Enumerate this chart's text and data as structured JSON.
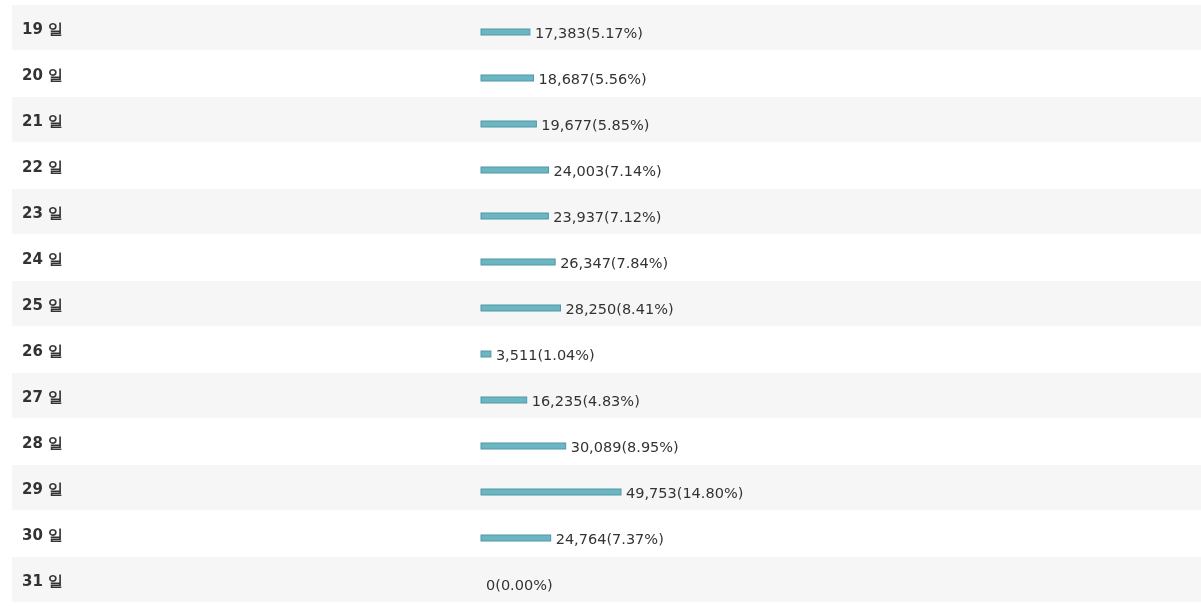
{
  "chart_data": {
    "type": "bar",
    "orientation": "horizontal",
    "color": "#6cb5c2",
    "categories": [
      "19 일",
      "20 일",
      "21 일",
      "22 일",
      "23 일",
      "24 일",
      "25 일",
      "26 일",
      "27 일",
      "28 일",
      "29 일",
      "30 일",
      "31 일"
    ],
    "values": [
      17383,
      18687,
      19677,
      24003,
      23937,
      26347,
      28250,
      3511,
      16235,
      30089,
      49753,
      24764,
      0
    ],
    "value_labels": [
      "17,383(5.17%)",
      "18,687(5.56%)",
      "19,677(5.85%)",
      "24,003(7.14%)",
      "23,937(7.12%)",
      "26,347(7.84%)",
      "28,250(8.41%)",
      "3,511(1.04%)",
      "16,235(4.83%)",
      "30,089(8.95%)",
      "49,753(14.80%)",
      "24,764(7.37%)",
      "0(0.00%)"
    ]
  }
}
